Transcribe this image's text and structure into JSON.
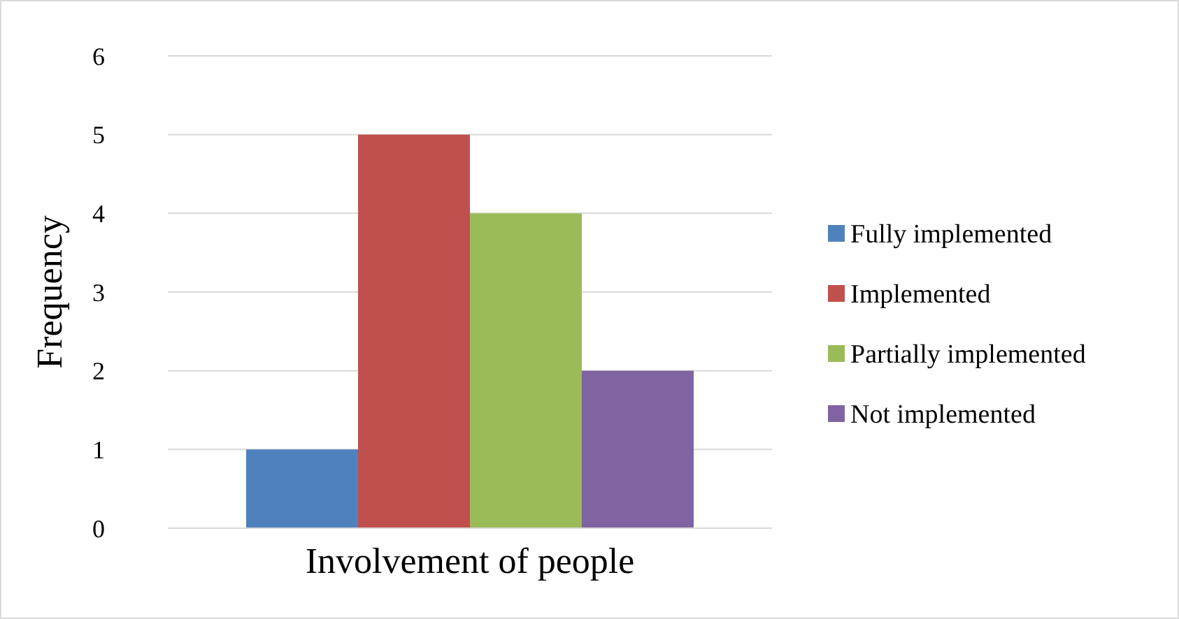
{
  "chart_data": {
    "type": "bar",
    "categories": [
      "Involvement of people"
    ],
    "ylabel": "Frequency",
    "ylim": [
      0,
      6
    ],
    "yticks": [
      0,
      1,
      2,
      3,
      4,
      5,
      6
    ],
    "grid": "y",
    "legend": "right",
    "series": [
      {
        "name": "Fully implemented",
        "color": "#4f81bd",
        "values": [
          1
        ]
      },
      {
        "name": "Implemented",
        "color": "#c0504d",
        "values": [
          5
        ]
      },
      {
        "name": "Partially implemented",
        "color": "#9bbb59",
        "values": [
          4
        ]
      },
      {
        "name": "Not implemented",
        "color": "#8064a2",
        "values": [
          2
        ]
      }
    ]
  }
}
